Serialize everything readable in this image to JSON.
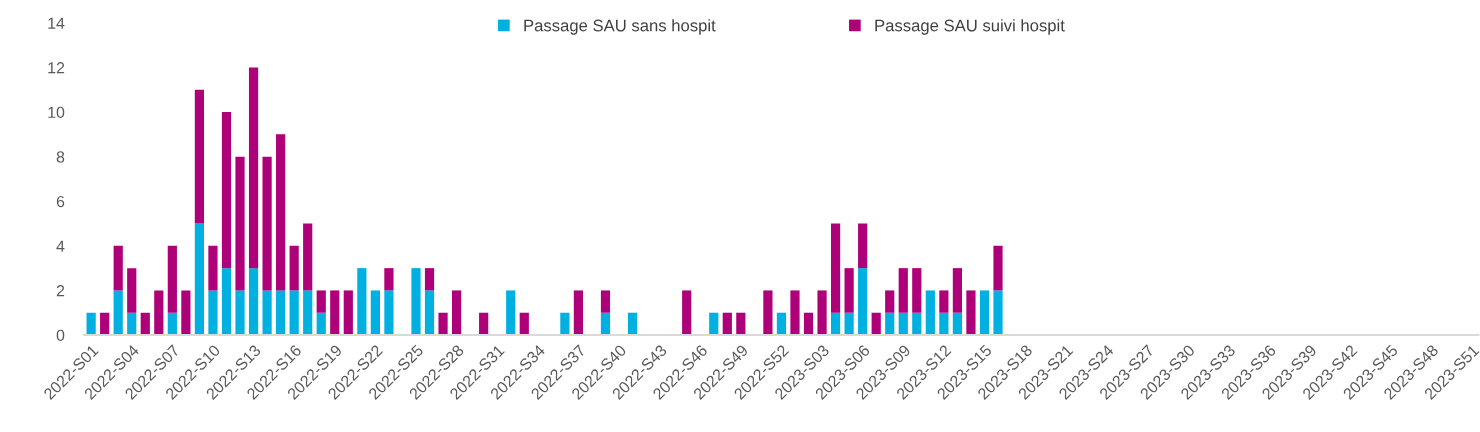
{
  "chart_data": {
    "type": "bar",
    "stacked": true,
    "legend": "top",
    "grid": false,
    "ylim": [
      0,
      14
    ],
    "yticks": [
      0,
      2,
      4,
      6,
      8,
      10,
      12,
      14
    ],
    "categories": [
      "2022-S01",
      null,
      null,
      "2022-S04",
      null,
      null,
      "2022-S07",
      null,
      null,
      "2022-S10",
      null,
      null,
      "2022-S13",
      null,
      null,
      "2022-S16",
      null,
      null,
      "2022-S19",
      null,
      null,
      "2022-S22",
      null,
      null,
      "2022-S25",
      null,
      null,
      "2022-S28",
      null,
      null,
      "2022-S31",
      null,
      null,
      "2022-S34",
      null,
      null,
      "2022-S37",
      null,
      null,
      "2022-S40",
      null,
      null,
      "2022-S43",
      null,
      null,
      "2022-S46",
      null,
      null,
      "2022-S49",
      null,
      null,
      "2022-S52",
      null,
      null,
      "2023-S03",
      null,
      null,
      "2023-S06",
      null,
      null,
      "2023-S09",
      null,
      null,
      "2023-S12",
      null,
      null,
      "2023-S15",
      null,
      null,
      "2023-S18",
      null,
      null,
      "2023-S21",
      null,
      null,
      "2023-S24",
      null,
      null,
      "2023-S27",
      null,
      null,
      "2023-S30",
      null,
      null,
      "2023-S33",
      null,
      null,
      "2023-S36",
      null,
      null,
      "2023-S39",
      null,
      null,
      "2023-S42",
      null,
      null,
      "2023-S45",
      null,
      null,
      "2023-S48",
      null,
      null,
      "2023-S51"
    ],
    "series": [
      {
        "name": "Passage SAU sans hospit",
        "color": "#00b0e0",
        "values": [
          1,
          0,
          2,
          1,
          0,
          0,
          1,
          0,
          5,
          2,
          3,
          2,
          3,
          2,
          2,
          2,
          2,
          1,
          0,
          0,
          3,
          2,
          2,
          0,
          3,
          2,
          0,
          0,
          0,
          0,
          0,
          2,
          0,
          0,
          0,
          1,
          0,
          0,
          1,
          0,
          1,
          0,
          0,
          0,
          0,
          0,
          1,
          0,
          0,
          0,
          0,
          1,
          0,
          0,
          0,
          1,
          1,
          3,
          0,
          1,
          1,
          1,
          2,
          1,
          1,
          0,
          2,
          2,
          null,
          null,
          null,
          null,
          null,
          null,
          null,
          null,
          null,
          null,
          null,
          null,
          null,
          null,
          null,
          null,
          null,
          null,
          null,
          null,
          null,
          null,
          null,
          null,
          null,
          null,
          null,
          null,
          null,
          null,
          null,
          null,
          null,
          null,
          null
        ]
      },
      {
        "name": "Passage SAU suivi hospit",
        "color": "#ae0078",
        "values": [
          0,
          1,
          2,
          2,
          1,
          2,
          3,
          2,
          6,
          2,
          7,
          6,
          9,
          6,
          7,
          2,
          3,
          1,
          2,
          2,
          0,
          0,
          1,
          0,
          0,
          1,
          1,
          2,
          0,
          1,
          0,
          0,
          1,
          0,
          0,
          0,
          2,
          0,
          1,
          0,
          0,
          0,
          0,
          0,
          2,
          0,
          0,
          1,
          1,
          0,
          2,
          0,
          2,
          1,
          2,
          4,
          2,
          2,
          1,
          1,
          2,
          2,
          0,
          1,
          2,
          2,
          0,
          2,
          null,
          null,
          null,
          null,
          null,
          null,
          null,
          null,
          null,
          null,
          null,
          null,
          null,
          null,
          null,
          null,
          null,
          null,
          null,
          null,
          null,
          null,
          null,
          null,
          null,
          null,
          null,
          null,
          null,
          null,
          null,
          null,
          null,
          null,
          null
        ]
      }
    ]
  }
}
